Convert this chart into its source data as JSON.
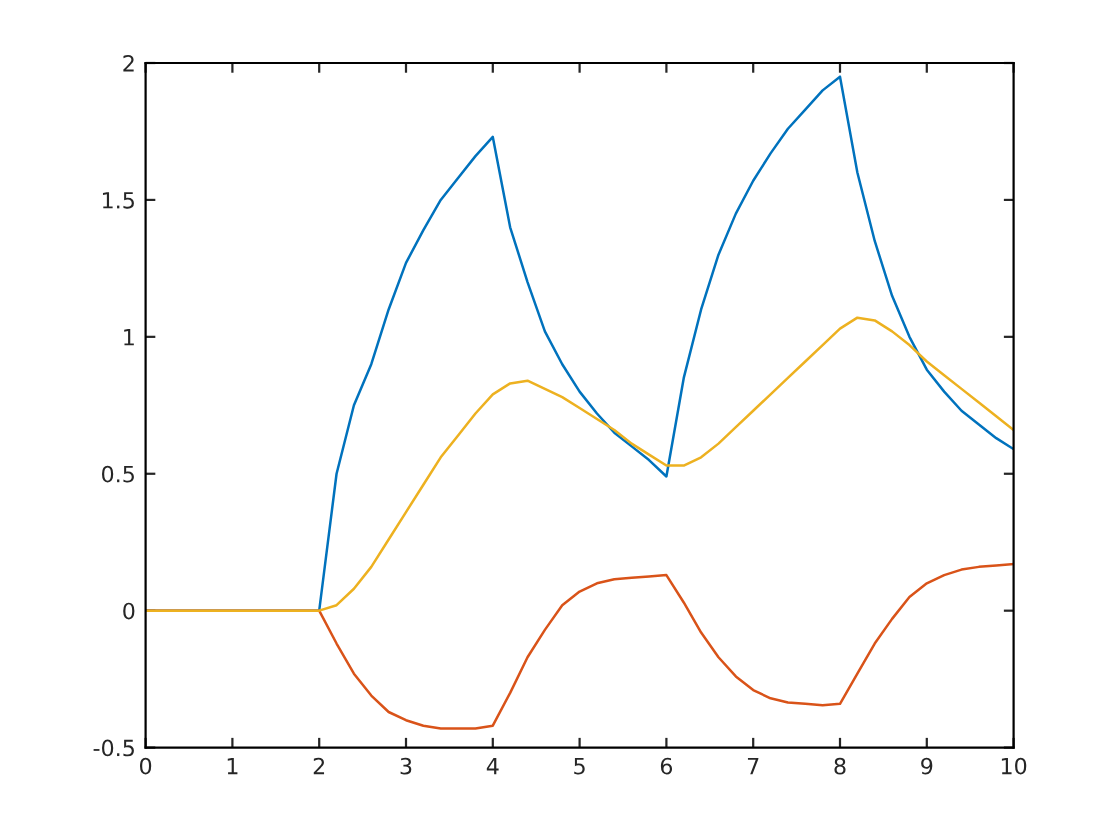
{
  "chart_data": {
    "type": "line",
    "x": [
      0,
      2,
      2.2,
      2.4,
      2.6,
      2.8,
      3,
      3.2,
      3.4,
      3.6,
      3.8,
      4,
      4.2,
      4.4,
      4.6,
      4.8,
      5,
      5.2,
      5.4,
      5.6,
      5.8,
      6,
      6.2,
      6.4,
      6.6,
      6.8,
      7,
      7.2,
      7.4,
      7.6,
      7.8,
      8,
      8.2,
      8.4,
      8.6,
      8.8,
      9,
      9.2,
      9.4,
      9.6,
      9.8,
      10
    ],
    "series": [
      {
        "color": "#0072bd",
        "values": [
          0,
          0,
          0.5,
          0.75,
          0.9,
          1.1,
          1.27,
          1.39,
          1.5,
          1.58,
          1.66,
          1.73,
          1.4,
          1.2,
          1.02,
          0.9,
          0.8,
          0.72,
          0.65,
          0.6,
          0.55,
          0.49,
          0.85,
          1.1,
          1.3,
          1.45,
          1.57,
          1.67,
          1.76,
          1.83,
          1.9,
          1.95,
          1.6,
          1.35,
          1.15,
          1.0,
          0.88,
          0.8,
          0.73,
          0.68,
          0.63,
          0.59
        ]
      },
      {
        "color": "#d95319",
        "values": [
          0,
          0,
          -0.12,
          -0.23,
          -0.31,
          -0.37,
          -0.4,
          -0.42,
          -0.43,
          -0.43,
          -0.43,
          -0.42,
          -0.3,
          -0.17,
          -0.07,
          0.02,
          0.07,
          0.1,
          0.115,
          0.12,
          0.125,
          0.13,
          0.03,
          -0.08,
          -0.17,
          -0.24,
          -0.29,
          -0.32,
          -0.335,
          -0.34,
          -0.345,
          -0.34,
          -0.23,
          -0.12,
          -0.03,
          0.05,
          0.1,
          0.13,
          0.15,
          0.16,
          0.165,
          0.17
        ]
      },
      {
        "color": "#edb120",
        "values": [
          0,
          0,
          0.02,
          0.08,
          0.16,
          0.26,
          0.36,
          0.46,
          0.56,
          0.64,
          0.72,
          0.79,
          0.83,
          0.84,
          0.81,
          0.78,
          0.74,
          0.7,
          0.66,
          0.61,
          0.57,
          0.53,
          0.53,
          0.56,
          0.61,
          0.67,
          0.73,
          0.79,
          0.85,
          0.91,
          0.97,
          1.03,
          1.07,
          1.06,
          1.02,
          0.97,
          0.91,
          0.86,
          0.81,
          0.76,
          0.71,
          0.66
        ]
      }
    ],
    "xlim": [
      0,
      10
    ],
    "ylim": [
      -0.5,
      2
    ],
    "xticks": [
      0,
      1,
      2,
      3,
      4,
      5,
      6,
      7,
      8,
      9,
      10
    ],
    "yticks": [
      -0.5,
      0,
      0.5,
      1,
      1.5,
      2
    ],
    "grid": false,
    "legend": false
  }
}
